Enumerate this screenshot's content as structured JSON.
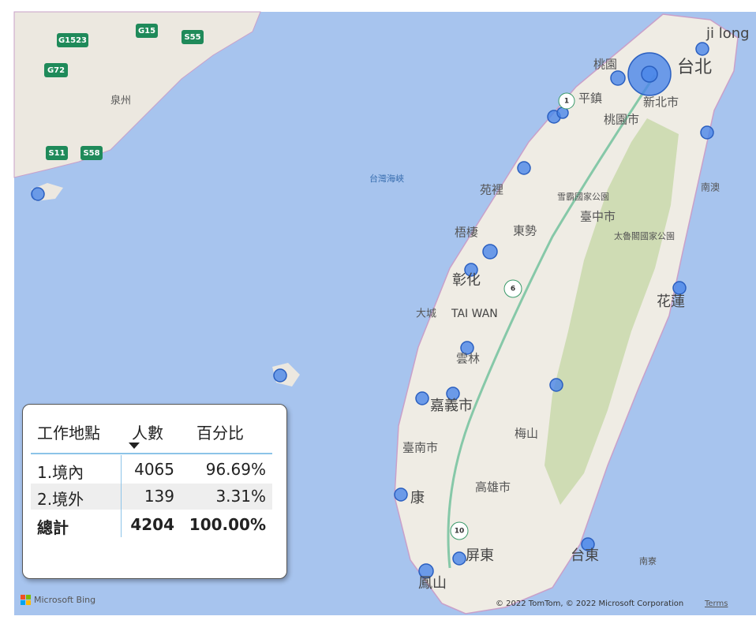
{
  "map": {
    "labels": {
      "jilong": "ji long",
      "taibei": "台北",
      "taoyuan": "桃園",
      "pingzhen": "平鎮",
      "xinbei": "新北市",
      "taoyuanshi": "桃園市",
      "strait": "台灣海峽",
      "yuanli": "苑裡",
      "shei": "雪霸國家公園",
      "taichung": "臺中市",
      "wuqi": "梧棲",
      "dongshi": "東勢",
      "taroko": "太魯閣國家公園",
      "nanao": "南澳",
      "changhua": "彰化",
      "hualien": "花蓮",
      "dacheng": "大城",
      "taiwan": "TAI WAN",
      "yunlin": "雲林",
      "chiayi": "嘉義市",
      "meishan": "梅山",
      "tainan": "臺南市",
      "kaohsiung": "高雄市",
      "yongkang": "康",
      "pingtung": "屏東",
      "taitung": "台東",
      "fengshan": "鳳山",
      "nanliao": "南寮",
      "quanzhou": "泉州"
    },
    "shields": [
      "G1523",
      "G15",
      "S55",
      "G72",
      "S11",
      "S58"
    ],
    "routes": [
      "1",
      "6",
      "10"
    ],
    "logo": "Microsoft Bing",
    "copyright": "© 2022 TomTom, © 2022 Microsoft Corporation",
    "terms": "Terms"
  },
  "table": {
    "header": [
      "工作地點",
      "人數",
      "百分比"
    ],
    "rows": [
      [
        "1.境內",
        "4065",
        "96.69%"
      ],
      [
        "2.境外",
        "139",
        "3.31%"
      ]
    ],
    "total": [
      "總計",
      "4204",
      "100.00%"
    ]
  }
}
